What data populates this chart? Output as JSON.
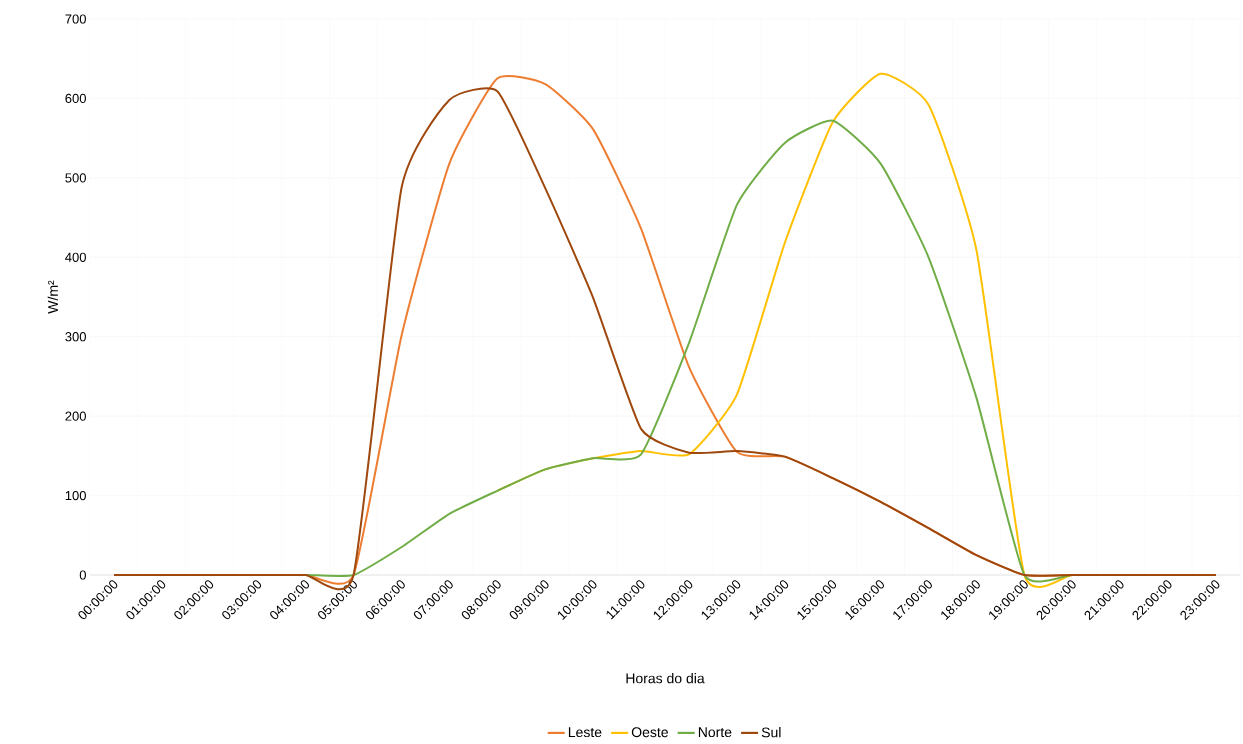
{
  "chart_data": {
    "type": "line",
    "xlabel": "Horas do dia",
    "ylabel": "W/m²",
    "categories": [
      "00:00:00",
      "01:00:00",
      "02:00:00",
      "03:00:00",
      "04:00:00",
      "05:00:00",
      "06:00:00",
      "07:00:00",
      "08:00:00",
      "09:00:00",
      "10:00:00",
      "11:00:00",
      "12:00:00",
      "13:00:00",
      "14:00:00",
      "15:00:00",
      "16:00:00",
      "17:00:00",
      "18:00:00",
      "19:00:00",
      "20:00:00",
      "21:00:00",
      "22:00:00",
      "23:00:00"
    ],
    "series": [
      {
        "name": "Leste",
        "color": "#ed7d31",
        "values": [
          null,
          null,
          null,
          0,
          0,
          0,
          301,
          518,
          625,
          618,
          561,
          436,
          262,
          155,
          149,
          122,
          92,
          59,
          25,
          0,
          0,
          0,
          null,
          null
        ]
      },
      {
        "name": "Oeste",
        "color": "#ffc000",
        "values": [
          null,
          null,
          null,
          null,
          null,
          null,
          null,
          null,
          106,
          133,
          147,
          156,
          152,
          227,
          418,
          570,
          631,
          592,
          409,
          0,
          0,
          0,
          null,
          null
        ]
      },
      {
        "name": "Norte",
        "color": "#70ad47",
        "values": [
          null,
          null,
          0,
          0,
          0,
          0,
          35,
          77,
          106,
          133,
          147,
          152,
          292,
          466,
          544,
          572,
          518,
          400,
          223,
          0,
          0,
          0,
          null,
          null
        ]
      },
      {
        "name": "Sul",
        "color": "#9e480e",
        "values": [
          0,
          0,
          0,
          0,
          0,
          0,
          487,
          598,
          609,
          487,
          349,
          184,
          154,
          156,
          149,
          122,
          92,
          59,
          25,
          0,
          0,
          0,
          0,
          0
        ]
      }
    ],
    "ylim": [
      0,
      700
    ],
    "yticks": [
      0,
      100,
      200,
      300,
      400,
      500,
      600,
      700
    ],
    "grid": true,
    "legend": "bottom",
    "line_style": "solid",
    "marker": "none"
  }
}
